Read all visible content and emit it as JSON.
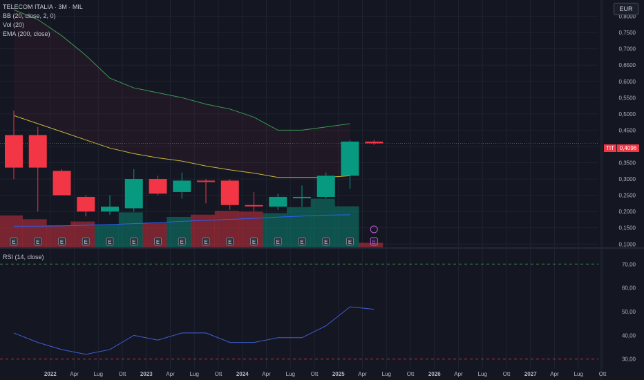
{
  "header": {
    "title": "TELECOM ITALIA · 3M · MIL",
    "indicators": [
      "BB (20, close, 2, 0)",
      "Vol (20)",
      "EMA (200, close)"
    ],
    "rsi_label": "RSI (14, close)",
    "currency": "EUR",
    "ticker": "TIT",
    "last_price": "0,4096"
  },
  "colors": {
    "background": "#141722",
    "up": "#089981",
    "down": "#f23645",
    "bb_upper": "#3a9b55",
    "bb_basis": "#c9b63a",
    "ema": "#2962ff",
    "rsi_line": "#3f5fd8",
    "earnings_icon": "#c25bd9"
  },
  "chart_data": [
    {
      "type": "candlestick",
      "ylim": [
        0.09,
        0.85
      ],
      "yticks": [
        "0,1000",
        "0,1500",
        "0,2000",
        "0,2500",
        "0,3000",
        "0,3500",
        "0,4000",
        "0,4500",
        "0,5000",
        "0,5500",
        "0,6000",
        "0,6500",
        "0,7000",
        "0,7500",
        "0,8000"
      ],
      "xticks": [
        "2022",
        "Apr",
        "Lug",
        "Ott",
        "2023",
        "Apr",
        "Lug",
        "Ott",
        "2024",
        "Apr",
        "Lug",
        "Ott",
        "2025",
        "Apr",
        "Lug",
        "Ott",
        "2026",
        "Apr",
        "Lug",
        "Ott",
        "2027",
        "Apr",
        "Lug",
        "Ott"
      ],
      "candles": [
        {
          "period": "2021 Q4",
          "open": 0.435,
          "high": 0.51,
          "low": 0.3,
          "close": 0.335
        },
        {
          "period": "2022 Q1",
          "open": 0.435,
          "high": 0.46,
          "low": 0.2,
          "close": 0.335
        },
        {
          "period": "2022 Q2",
          "open": 0.325,
          "high": 0.33,
          "low": 0.25,
          "close": 0.25
        },
        {
          "period": "2022 Q3",
          "open": 0.245,
          "high": 0.25,
          "low": 0.185,
          "close": 0.2
        },
        {
          "period": "2022 Q4",
          "open": 0.2,
          "high": 0.25,
          "low": 0.19,
          "close": 0.215
        },
        {
          "period": "2023 Q1",
          "open": 0.21,
          "high": 0.33,
          "low": 0.2,
          "close": 0.3
        },
        {
          "period": "2023 Q2",
          "open": 0.3,
          "high": 0.31,
          "low": 0.25,
          "close": 0.255
        },
        {
          "period": "2023 Q3",
          "open": 0.26,
          "high": 0.32,
          "low": 0.24,
          "close": 0.295
        },
        {
          "period": "2023 Q4",
          "open": 0.295,
          "high": 0.3,
          "low": 0.225,
          "close": 0.293
        },
        {
          "period": "2024 Q1",
          "open": 0.295,
          "high": 0.3,
          "low": 0.205,
          "close": 0.22
        },
        {
          "period": "2024 Q2",
          "open": 0.22,
          "high": 0.26,
          "low": 0.2,
          "close": 0.218
        },
        {
          "period": "2024 Q3",
          "open": 0.215,
          "high": 0.255,
          "low": 0.205,
          "close": 0.245
        },
        {
          "period": "2024 Q4",
          "open": 0.245,
          "high": 0.28,
          "low": 0.215,
          "close": 0.245
        },
        {
          "period": "2025 Q1",
          "open": 0.245,
          "high": 0.32,
          "low": 0.24,
          "close": 0.31
        },
        {
          "period": "2025 Q2",
          "open": 0.31,
          "high": 0.42,
          "low": 0.27,
          "close": 0.415
        },
        {
          "period": "2025 Q3",
          "open": 0.415,
          "high": 0.42,
          "low": 0.405,
          "close": 0.4096
        }
      ],
      "bb_upper": [
        0.82,
        0.79,
        0.74,
        0.68,
        0.61,
        0.58,
        0.565,
        0.55,
        0.53,
        0.515,
        0.49,
        0.45,
        0.45,
        0.46,
        0.47
      ],
      "bb_basis": [
        0.495,
        0.47,
        0.445,
        0.42,
        0.395,
        0.378,
        0.365,
        0.355,
        0.34,
        0.328,
        0.318,
        0.305,
        0.305,
        0.305,
        0.31
      ],
      "ema": [
        0.155,
        0.155,
        0.156,
        0.158,
        0.16,
        0.163,
        0.166,
        0.17,
        0.173,
        0.176,
        0.179,
        0.183,
        0.186,
        0.189,
        0.19
      ],
      "volume": [
        0.42,
        0.37,
        0.29,
        0.34,
        0.3,
        0.46,
        0.32,
        0.4,
        0.43,
        0.48,
        0.47,
        0.45,
        0.53,
        0.64,
        0.54,
        0.06
      ]
    },
    {
      "type": "line",
      "title": "RSI (14, close)",
      "ylim": [
        27,
        73
      ],
      "yticks": [
        "30,00",
        "40,00",
        "50,00",
        "60,00",
        "70,00"
      ],
      "levels": [
        70,
        30
      ],
      "values": [
        41,
        37,
        34,
        32,
        34,
        40,
        38,
        41,
        41,
        37,
        37,
        39,
        39,
        44,
        52,
        51
      ]
    }
  ]
}
